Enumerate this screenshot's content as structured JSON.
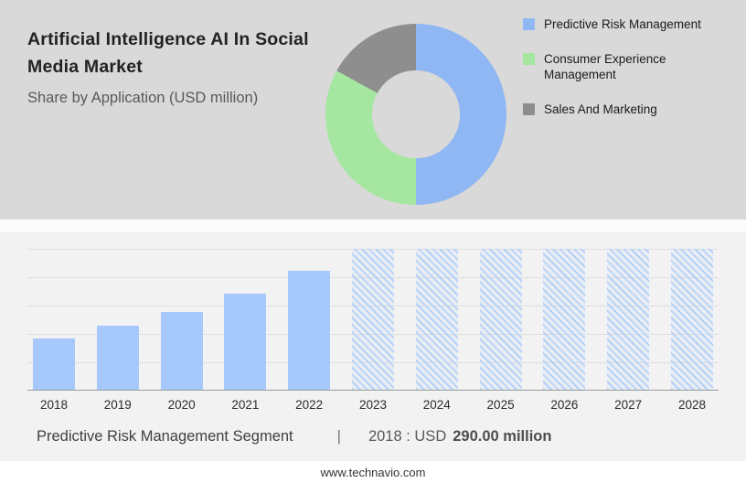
{
  "header": {
    "title": "Artificial Intelligence AI In Social Media Market",
    "subtitle": "Share by Application (USD million)"
  },
  "chart_data": [
    {
      "type": "pie",
      "donut": true,
      "title": "Share by Application (USD million)",
      "legend_position": "right",
      "segments": [
        {
          "label": "Predictive Risk Management",
          "percent": 50,
          "color": "#8FB7F3"
        },
        {
          "label": "Consumer Experience Management",
          "percent": 33,
          "color": "#A5E7A0"
        },
        {
          "label": "Sales And Marketing",
          "percent": 17,
          "color": "#8E8E8E"
        }
      ]
    },
    {
      "type": "bar",
      "title": "Predictive Risk Management Segment",
      "unit": "USD million",
      "categories": [
        "2018",
        "2019",
        "2020",
        "2021",
        "2022",
        "2023",
        "2024",
        "2025",
        "2026",
        "2027",
        "2028"
      ],
      "values": [
        290,
        365,
        440,
        545,
        675,
        null,
        null,
        null,
        null,
        null,
        null
      ],
      "forecast_mask": [
        false,
        false,
        false,
        false,
        false,
        true,
        true,
        true,
        true,
        true,
        true
      ],
      "ylim": [
        0,
        800
      ],
      "grid": true,
      "bar_color": "#A6C8FA",
      "hatch_color": "#AECDF9",
      "known_point": "2018 : USD 290.00 million"
    }
  ],
  "caption": {
    "segment_label": "Predictive Risk Management Segment",
    "separator": "|",
    "stat_prefix": "2018 : USD",
    "stat_value": "290.00 million"
  },
  "footer": {
    "url": "www.technavio.com"
  },
  "colors": {
    "header_bg": "#D9D9D9",
    "chart_bg": "#F2F2F2",
    "footer_bg": "#FFFFFF",
    "bar_blue": "#A6C8FA",
    "donut_blue": "#8FB7F3",
    "donut_green": "#A5E7A0",
    "donut_gray": "#8E8E8E"
  }
}
